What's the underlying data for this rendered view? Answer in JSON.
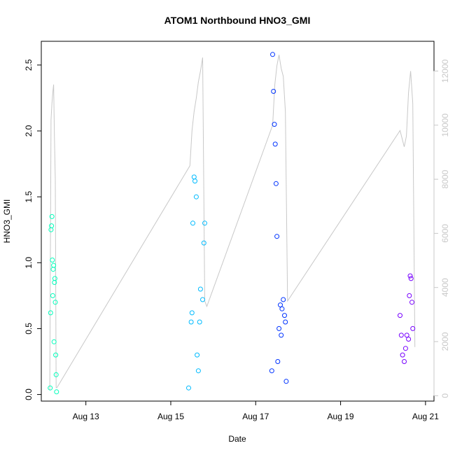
{
  "chart_data": {
    "type": "scatter",
    "title": "ATOM1 Northbound HNO3_GMI",
    "xlabel": "Date",
    "ylabel": "HNO3_GMI",
    "ylabel_right": "",
    "x_ticks": [
      "Aug 13",
      "Aug 15",
      "Aug 17",
      "Aug 19",
      "Aug 21"
    ],
    "x_tick_days": [
      13,
      15,
      17,
      19,
      21
    ],
    "xlim_days": [
      11.95,
      21.2
    ],
    "y_ticks": [
      "0.0",
      "0.5",
      "1.0",
      "1.5",
      "2.0",
      "2.5"
    ],
    "ylim": [
      -0.05,
      2.68
    ],
    "y_ticks_right": [
      "0",
      "2000",
      "4000",
      "6000",
      "8000",
      "10000",
      "12000"
    ],
    "ylim_right": [
      -200,
      13100
    ],
    "grid": false,
    "legend": "none",
    "colors": {
      "flight1": "#00ffbb",
      "flight2": "#00bbff",
      "flight3": "#0033ff",
      "flight4": "#7700ff",
      "altitude_line": "#c8c8c8",
      "axis": "#000000"
    },
    "series": [
      {
        "group": "flight1",
        "day_range": [
          12.15,
          12.32
        ],
        "x": [
          12.16,
          12.17,
          12.18,
          12.19,
          12.2,
          12.21,
          12.22,
          12.23,
          12.24,
          12.25,
          12.26,
          12.27,
          12.28,
          12.29,
          12.3,
          12.31
        ],
        "y": [
          0.05,
          0.62,
          1.25,
          1.28,
          1.35,
          1.02,
          0.75,
          0.95,
          0.98,
          0.4,
          0.85,
          0.88,
          0.7,
          0.3,
          0.15,
          0.02
        ]
      },
      {
        "group": "flight2",
        "day_range": [
          15.4,
          15.85
        ],
        "x": [
          15.42,
          15.48,
          15.5,
          15.52,
          15.55,
          15.57,
          15.6,
          15.62,
          15.65,
          15.68,
          15.7,
          15.75,
          15.78,
          15.8
        ],
        "y": [
          0.05,
          0.55,
          0.62,
          1.3,
          1.65,
          1.62,
          1.5,
          0.3,
          0.18,
          0.55,
          0.8,
          0.72,
          1.15,
          1.3
        ]
      },
      {
        "group": "flight3",
        "day_range": [
          17.35,
          17.75
        ],
        "x": [
          17.38,
          17.4,
          17.42,
          17.44,
          17.46,
          17.48,
          17.5,
          17.52,
          17.55,
          17.58,
          17.6,
          17.62,
          17.65,
          17.68,
          17.7,
          17.72
        ],
        "y": [
          0.18,
          2.58,
          2.3,
          2.05,
          1.9,
          1.6,
          1.2,
          0.25,
          0.5,
          0.68,
          0.45,
          0.65,
          0.72,
          0.6,
          0.55,
          0.1
        ]
      },
      {
        "group": "flight4",
        "day_range": [
          20.38,
          20.72
        ],
        "x": [
          20.4,
          20.43,
          20.46,
          20.5,
          20.53,
          20.56,
          20.6,
          20.62,
          20.64,
          20.66,
          20.68,
          20.7
        ],
        "y": [
          0.6,
          0.45,
          0.3,
          0.25,
          0.35,
          0.45,
          0.42,
          0.75,
          0.9,
          0.88,
          0.7,
          0.5
        ]
      }
    ],
    "altitude_series": {
      "x": [
        12.15,
        12.18,
        12.2,
        12.22,
        12.24,
        12.26,
        12.28,
        12.3,
        12.32,
        15.45,
        15.5,
        15.55,
        15.6,
        15.65,
        15.7,
        15.75,
        15.8,
        15.85,
        17.4,
        17.45,
        17.5,
        17.55,
        17.6,
        17.65,
        17.7,
        17.75,
        20.4,
        20.45,
        20.5,
        20.55,
        20.6,
        20.65,
        20.7,
        20.75
      ],
      "y": [
        200,
        10200,
        10800,
        11200,
        11500,
        9500,
        8000,
        300,
        300,
        8500,
        9800,
        10500,
        11000,
        11600,
        12000,
        12500,
        3500,
        3300,
        10000,
        11500,
        12200,
        12600,
        12100,
        11800,
        10500,
        3500,
        9800,
        9500,
        9200,
        9600,
        11200,
        12000,
        10800,
        1800
      ]
    }
  }
}
